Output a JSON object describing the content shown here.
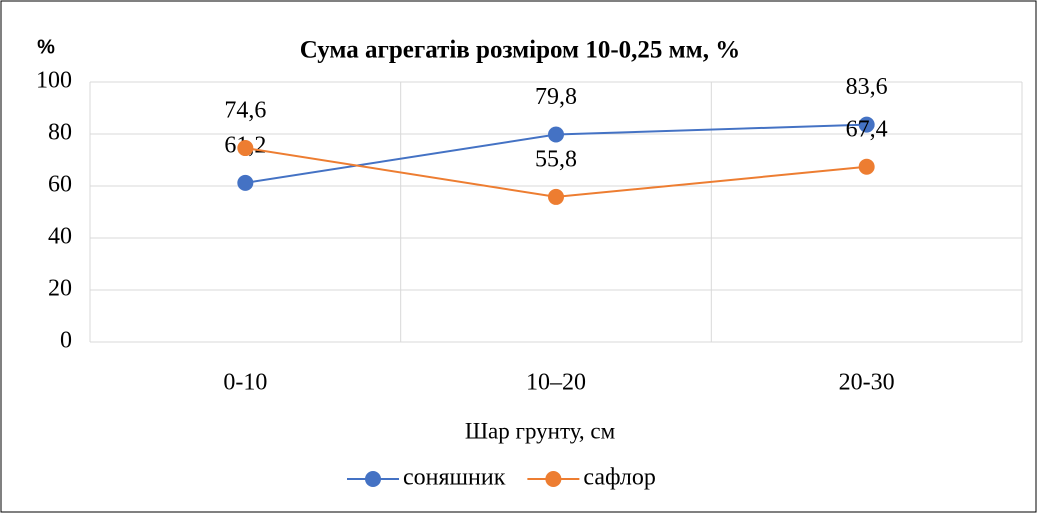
{
  "chart_data": {
    "type": "line",
    "title": "Сума агрегатів розміром 10-0,25 мм, %",
    "y_label": "%",
    "x_label": "Шар грунту, см",
    "categories": [
      "0-10",
      "10–20",
      "20-30"
    ],
    "series": [
      {
        "name": "соняшник",
        "color": "#4472c4",
        "values": [
          61.2,
          79.8,
          83.6
        ],
        "value_labels": [
          "61,2",
          "79,8",
          "83,6"
        ]
      },
      {
        "name": "сафлор",
        "color": "#ed7d31",
        "values": [
          74.6,
          55.8,
          67.4
        ],
        "value_labels": [
          "74,6",
          "55,8",
          "67,4"
        ]
      }
    ],
    "ylim": [
      0,
      100
    ],
    "yticks": [
      0,
      20,
      40,
      60,
      80,
      100
    ],
    "grid": true
  }
}
